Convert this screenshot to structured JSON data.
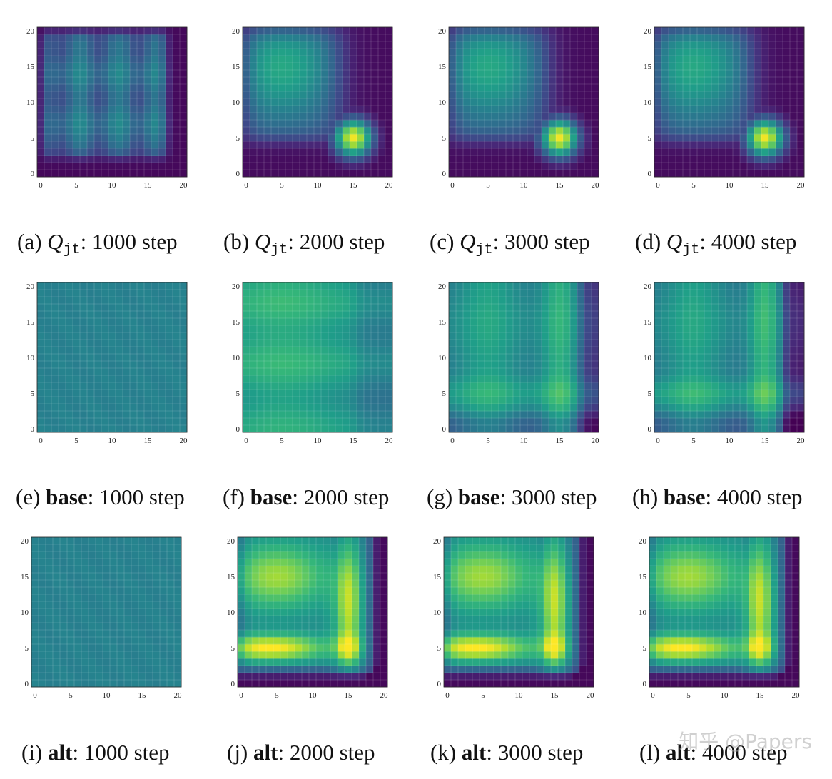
{
  "figure": {
    "watermark": "知乎 @Papers"
  },
  "chart_data": [
    {
      "id": "a",
      "type": "heatmap",
      "letter": "(a)",
      "method": "Q",
      "method_sub": "jt",
      "step_label": "1000 step",
      "grid": 21,
      "x_ticks": [
        "0",
        "5",
        "10",
        "15",
        "20"
      ],
      "y_ticks": [
        "0",
        "5",
        "10",
        "15",
        "20"
      ],
      "xlim": [
        0,
        20
      ],
      "ylim": [
        0,
        20
      ],
      "value_range": [
        0,
        1
      ],
      "pattern": "q1000"
    },
    {
      "id": "b",
      "type": "heatmap",
      "letter": "(b)",
      "method": "Q",
      "method_sub": "jt",
      "step_label": "2000 step",
      "grid": 21,
      "x_ticks": [
        "0",
        "5",
        "10",
        "15",
        "20"
      ],
      "y_ticks": [
        "0",
        "5",
        "10",
        "15",
        "20"
      ],
      "xlim": [
        0,
        20
      ],
      "ylim": [
        0,
        20
      ],
      "value_range": [
        0,
        1
      ],
      "pattern": "qlate"
    },
    {
      "id": "c",
      "type": "heatmap",
      "letter": "(c)",
      "method": "Q",
      "method_sub": "jt",
      "step_label": "3000 step",
      "grid": 21,
      "x_ticks": [
        "0",
        "5",
        "10",
        "15",
        "20"
      ],
      "y_ticks": [
        "0",
        "5",
        "10",
        "15",
        "20"
      ],
      "xlim": [
        0,
        20
      ],
      "ylim": [
        0,
        20
      ],
      "value_range": [
        0,
        1
      ],
      "pattern": "qlate"
    },
    {
      "id": "d",
      "type": "heatmap",
      "letter": "(d)",
      "method": "Q",
      "method_sub": "jt",
      "step_label": "4000 step",
      "grid": 21,
      "x_ticks": [
        "0",
        "5",
        "10",
        "15",
        "20"
      ],
      "y_ticks": [
        "0",
        "5",
        "10",
        "15",
        "20"
      ],
      "xlim": [
        0,
        20
      ],
      "ylim": [
        0,
        20
      ],
      "value_range": [
        0,
        1
      ],
      "pattern": "qlate"
    },
    {
      "id": "e",
      "type": "heatmap",
      "letter": "(e)",
      "method": "base",
      "method_sub": "",
      "step_label": "1000 step",
      "grid": 21,
      "x_ticks": [
        "0",
        "5",
        "10",
        "15",
        "20"
      ],
      "y_ticks": [
        "0",
        "5",
        "10",
        "15",
        "20"
      ],
      "xlim": [
        0,
        20
      ],
      "ylim": [
        0,
        20
      ],
      "value_range": [
        0,
        1
      ],
      "pattern": "flat"
    },
    {
      "id": "f",
      "type": "heatmap",
      "letter": "(f)",
      "method": "base",
      "method_sub": "",
      "step_label": "2000 step",
      "grid": 21,
      "x_ticks": [
        "0",
        "5",
        "10",
        "15",
        "20"
      ],
      "y_ticks": [
        "0",
        "5",
        "10",
        "15",
        "20"
      ],
      "xlim": [
        0,
        20
      ],
      "ylim": [
        0,
        20
      ],
      "value_range": [
        0,
        1
      ],
      "pattern": "base2000"
    },
    {
      "id": "g",
      "type": "heatmap",
      "letter": "(g)",
      "method": "base",
      "method_sub": "",
      "step_label": "3000 step",
      "grid": 21,
      "x_ticks": [
        "0",
        "5",
        "10",
        "15",
        "20"
      ],
      "y_ticks": [
        "0",
        "5",
        "10",
        "15",
        "20"
      ],
      "xlim": [
        0,
        20
      ],
      "ylim": [
        0,
        20
      ],
      "value_range": [
        0,
        1
      ],
      "pattern": "baselate"
    },
    {
      "id": "h",
      "type": "heatmap",
      "letter": "(h)",
      "method": "base",
      "method_sub": "",
      "step_label": "4000 step",
      "grid": 21,
      "x_ticks": [
        "0",
        "5",
        "10",
        "15",
        "20"
      ],
      "y_ticks": [
        "0",
        "5",
        "10",
        "15",
        "20"
      ],
      "xlim": [
        0,
        20
      ],
      "ylim": [
        0,
        20
      ],
      "value_range": [
        0,
        1
      ],
      "pattern": "baselate2"
    },
    {
      "id": "i",
      "type": "heatmap",
      "letter": "(i)",
      "method": "alt",
      "method_sub": "",
      "step_label": "1000 step",
      "grid": 21,
      "x_ticks": [
        "0",
        "5",
        "10",
        "15",
        "20"
      ],
      "y_ticks": [
        "0",
        "5",
        "10",
        "15",
        "20"
      ],
      "xlim": [
        0,
        20
      ],
      "ylim": [
        0,
        20
      ],
      "value_range": [
        0,
        1
      ],
      "pattern": "flat"
    },
    {
      "id": "j",
      "type": "heatmap",
      "letter": "(j)",
      "method": "alt",
      "method_sub": "",
      "step_label": "2000 step",
      "grid": 21,
      "x_ticks": [
        "0",
        "5",
        "10",
        "15",
        "20"
      ],
      "y_ticks": [
        "0",
        "5",
        "10",
        "15",
        "20"
      ],
      "xlim": [
        0,
        20
      ],
      "ylim": [
        0,
        20
      ],
      "value_range": [
        0,
        1
      ],
      "pattern": "alt"
    },
    {
      "id": "k",
      "type": "heatmap",
      "letter": "(k)",
      "method": "alt",
      "method_sub": "",
      "step_label": "3000 step",
      "grid": 21,
      "x_ticks": [
        "0",
        "5",
        "10",
        "15",
        "20"
      ],
      "y_ticks": [
        "0",
        "5",
        "10",
        "15",
        "20"
      ],
      "xlim": [
        0,
        20
      ],
      "ylim": [
        0,
        20
      ],
      "value_range": [
        0,
        1
      ],
      "pattern": "alt"
    },
    {
      "id": "l",
      "type": "heatmap",
      "letter": "(l)",
      "method": "alt",
      "method_sub": "",
      "step_label": "4000 step",
      "grid": 21,
      "x_ticks": [
        "0",
        "5",
        "10",
        "15",
        "20"
      ],
      "y_ticks": [
        "0",
        "5",
        "10",
        "15",
        "20"
      ],
      "xlim": [
        0,
        20
      ],
      "ylim": [
        0,
        20
      ],
      "value_range": [
        0,
        1
      ],
      "pattern": "alt"
    }
  ]
}
